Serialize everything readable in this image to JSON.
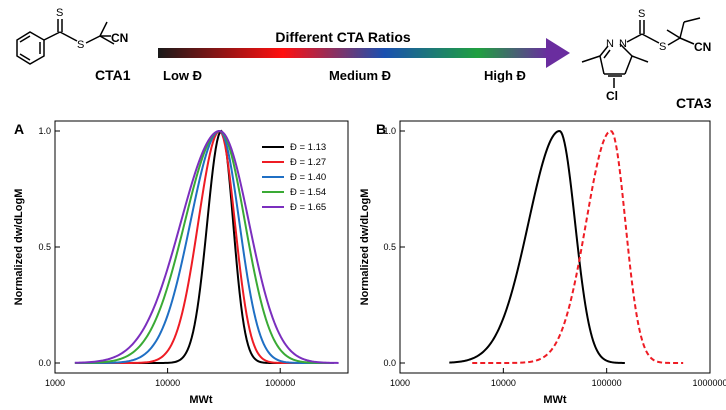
{
  "header": {
    "arrow_title": "Different CTA Ratios",
    "low_label": "Low Đ",
    "medium_label": "Medium Đ",
    "high_label": "High Đ",
    "left_molecule": {
      "name": "CTA1",
      "cn": "CN",
      "s_thione": "S",
      "s_link": "S"
    },
    "right_molecule": {
      "name": "CTA3",
      "cn": "CN",
      "s_thione": "S",
      "s_link": "S",
      "n1": "N",
      "n2": "N",
      "cl": "Cl"
    },
    "gradient_colors": [
      "#1a1a1a",
      "#ff1010",
      "#1a50b0",
      "#20a040",
      "#6a2d9f"
    ]
  },
  "chart_data": [
    {
      "panel": "A",
      "type": "line",
      "title": "",
      "xlabel": "MWt",
      "ylabel": "Normalized dw/dLogM",
      "x_scale": "log",
      "xlim": [
        1000,
        400000
      ],
      "ylim": [
        0.0,
        1.0
      ],
      "x_ticks": [
        "1000",
        "10000",
        "100000"
      ],
      "y_ticks": [
        "0.0",
        "0.5",
        "1.0"
      ],
      "legend_position": "top-right",
      "series": [
        {
          "name": "Đ = 1.13",
          "color": "#000000",
          "dash": "solid",
          "peak_mw": 30000,
          "sigma_left": 0.125,
          "sigma_right": 0.105,
          "x_range": [
            3000,
            300000
          ]
        },
        {
          "name": "Đ = 1.27",
          "color": "#ee1c24",
          "dash": "solid",
          "peak_mw": 29000,
          "sigma_left": 0.19,
          "sigma_right": 0.135,
          "x_range": [
            2000,
            300000
          ]
        },
        {
          "name": "Đ = 1.40",
          "color": "#1f6fc4",
          "dash": "solid",
          "peak_mw": 29000,
          "sigma_left": 0.26,
          "sigma_right": 0.175,
          "x_range": [
            1600,
            300000
          ]
        },
        {
          "name": "Đ = 1.54",
          "color": "#3aaa35",
          "dash": "solid",
          "peak_mw": 29000,
          "sigma_left": 0.31,
          "sigma_right": 0.225,
          "x_range": [
            1500,
            300000
          ]
        },
        {
          "name": "Đ = 1.65",
          "color": "#7b2fbe",
          "dash": "solid",
          "peak_mw": 29000,
          "sigma_left": 0.345,
          "sigma_right": 0.26,
          "x_range": [
            1500,
            330000
          ]
        }
      ]
    },
    {
      "panel": "B",
      "type": "line",
      "title": "",
      "xlabel": "MWt",
      "ylabel": "Normalized dw/dLogM",
      "x_scale": "log",
      "xlim": [
        1000,
        1000000
      ],
      "ylim": [
        0.0,
        1.0
      ],
      "x_ticks": [
        "1000",
        "10000",
        "100000",
        "1000000"
      ],
      "y_ticks": [
        "0.0",
        "0.5",
        "1.0"
      ],
      "legend_position": "none",
      "series": [
        {
          "color": "#000000",
          "dash": "solid",
          "peak_mw": 35000,
          "sigma_left": 0.3,
          "sigma_right": 0.15,
          "x_range": [
            3000,
            150000
          ]
        },
        {
          "color": "#ee1c24",
          "dash": "dashed",
          "peak_mw": 110000,
          "sigma_left": 0.24,
          "sigma_right": 0.14,
          "x_range": [
            5000,
            550000
          ]
        }
      ]
    }
  ],
  "panel_letters": [
    "A",
    "B"
  ]
}
